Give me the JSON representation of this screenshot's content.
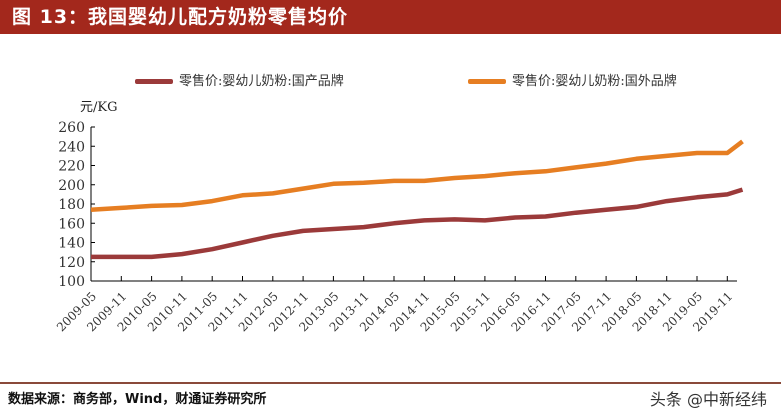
{
  "header": {
    "title": "图 13：我国婴幼儿配方奶粉零售均价"
  },
  "footer": {
    "source": "数据来源：商务部，Wind，财通证券研究所",
    "watermark": "头条 @中新经纬"
  },
  "chart_data": {
    "type": "line",
    "title": "图 13：我国婴幼儿配方奶粉零售均价",
    "ylabel": "元/KG",
    "xlabel": "",
    "ylim": [
      100,
      260
    ],
    "yticks": [
      100,
      120,
      140,
      160,
      180,
      200,
      220,
      240,
      260
    ],
    "grid": false,
    "legend_position": "top",
    "x": [
      "2009-05",
      "2009-11",
      "2010-05",
      "2010-11",
      "2011-05",
      "2011-11",
      "2012-05",
      "2012-11",
      "2013-05",
      "2013-11",
      "2014-05",
      "2014-11",
      "2015-05",
      "2015-11",
      "2016-05",
      "2016-11",
      "2017-05",
      "2017-11",
      "2018-05",
      "2018-11",
      "2019-05",
      "2019-11",
      "2020-02"
    ],
    "xtick_labels": [
      "2009-05",
      "2009-11",
      "2010-05",
      "2010-11",
      "2011-05",
      "2011-11",
      "2012-05",
      "2012-11",
      "2013-05",
      "2013-11",
      "2014-05",
      "2014-11",
      "2015-05",
      "2015-11",
      "2016-05",
      "2016-11",
      "2017-05",
      "2017-11",
      "2018-05",
      "2018-11",
      "2019-05",
      "2019-11"
    ],
    "series": [
      {
        "name": "零售价:婴幼儿奶粉:国产品牌",
        "color": "#9b3a3a",
        "values": [
          125,
          125,
          125,
          128,
          133,
          140,
          147,
          152,
          154,
          156,
          160,
          163,
          164,
          163,
          166,
          167,
          171,
          174,
          177,
          183,
          187,
          190,
          195
        ]
      },
      {
        "name": "零售价:婴幼儿奶粉:国外品牌",
        "color": "#e67e22",
        "values": [
          174,
          176,
          178,
          179,
          183,
          189,
          191,
          196,
          201,
          202,
          204,
          204,
          207,
          209,
          212,
          214,
          218,
          222,
          227,
          230,
          233,
          233,
          245
        ]
      }
    ]
  }
}
